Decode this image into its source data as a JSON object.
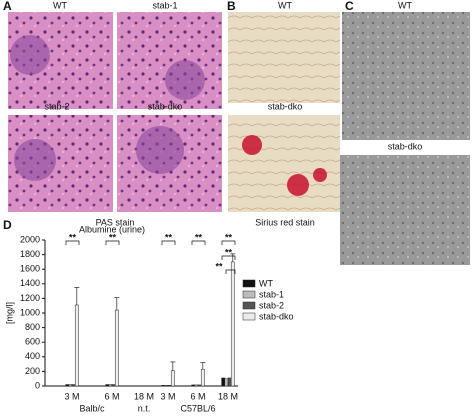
{
  "panels": {
    "a": {
      "label": "A",
      "images": [
        "WT",
        "stab-1",
        "stab-2",
        "stab-dko"
      ],
      "caption": "PAS stain"
    },
    "b": {
      "label": "B",
      "images": [
        "WT",
        "stab-dko"
      ],
      "caption": "Sirius red stain"
    },
    "c": {
      "label": "C",
      "images": [
        "WT",
        "stab-dko"
      ]
    },
    "d": {
      "label": "D"
    }
  },
  "chart_data": {
    "type": "bar",
    "title": "Albumine (urine)",
    "y_label": "[mg/l]",
    "categories": [
      "3 M",
      "6 M",
      "18 M",
      "3 M",
      "6 M",
      "18 M"
    ],
    "group_labels": [
      "Balb/c",
      "n.t.",
      "C57BL/6"
    ],
    "series": [
      {
        "name": "WT",
        "color": "#111111",
        "values": [
          20,
          20,
          null,
          10,
          15,
          110
        ]
      },
      {
        "name": "stab-1",
        "color": "#bdbdbd",
        "values": [
          20,
          20,
          null,
          10,
          15,
          100
        ]
      },
      {
        "name": "stab-2",
        "color": "#555555",
        "values": [
          20,
          20,
          null,
          10,
          15,
          110
        ]
      },
      {
        "name": "stab-dko",
        "color": "#ececec",
        "values": [
          1110,
          1040,
          null,
          210,
          230,
          1700
        ],
        "errors": [
          240,
          170,
          null,
          120,
          90,
          110
        ]
      }
    ],
    "significance": [
      "**",
      "**",
      "**",
      "**",
      "**",
      "**",
      "**"
    ],
    "ylim": [
      0,
      2000
    ],
    "yticks": [
      0,
      200,
      400,
      600,
      800,
      1000,
      1200,
      1400,
      1600,
      1800,
      2000
    ]
  }
}
